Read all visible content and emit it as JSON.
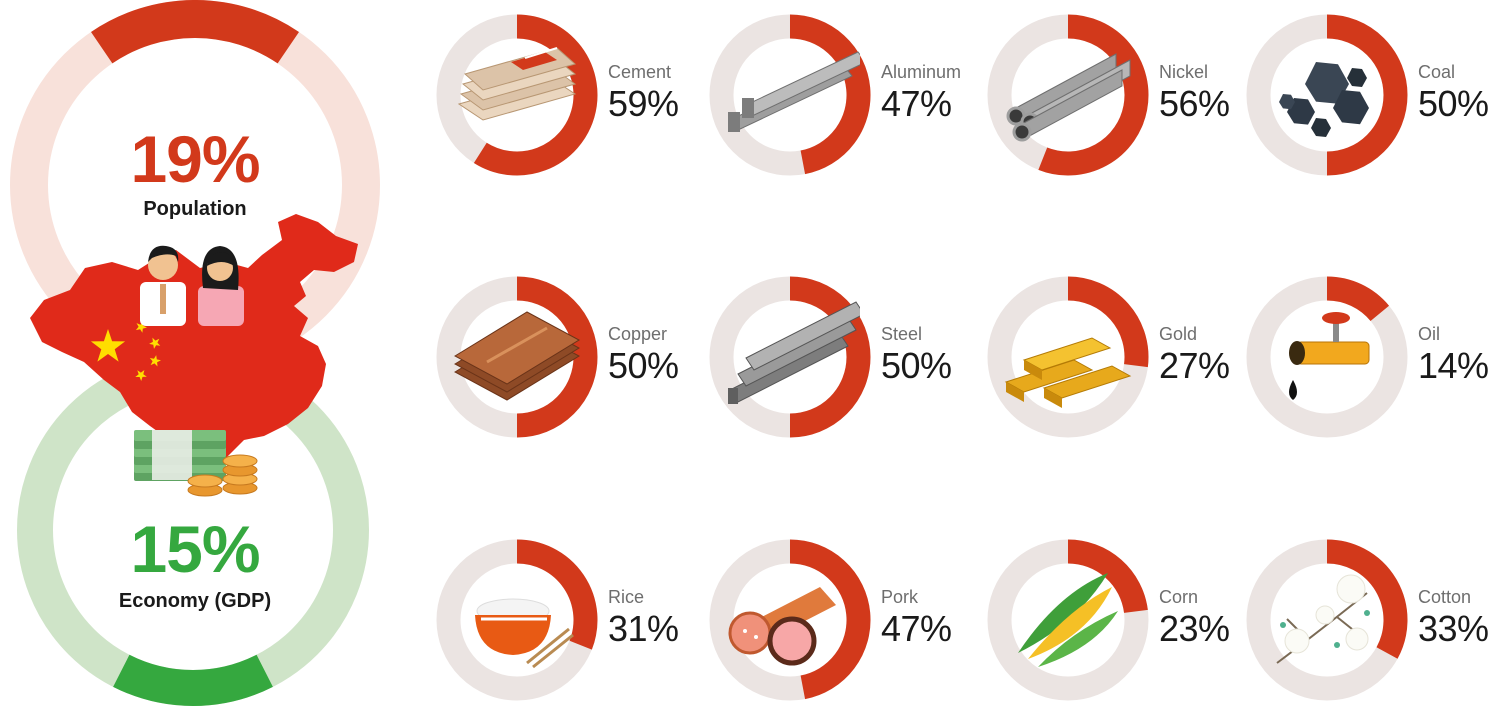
{
  "colors": {
    "accent": "#d2391b",
    "donut_track": "#ebe4e2",
    "population_track": "#f8e1da",
    "gdp_track": "#cfe4c8",
    "gdp_fill": "#35a83f",
    "population_text": "#d2391b",
    "gdp_text": "#35a83f",
    "map_red": "#e02a1a",
    "star_yellow": "#ffde00"
  },
  "headline": {
    "population": {
      "value": "19%",
      "label": "Population",
      "fraction": 0.19
    },
    "gdp": {
      "value": "15%",
      "label": "Economy (GDP)",
      "fraction": 0.15
    }
  },
  "chart_data": {
    "type": "pie",
    "categories": [
      "Cement",
      "Aluminum",
      "Nickel",
      "Coal",
      "Copper",
      "Steel",
      "Gold",
      "Oil",
      "Rice",
      "Pork",
      "Corn",
      "Cotton"
    ],
    "values": [
      59,
      47,
      56,
      50,
      50,
      50,
      27,
      14,
      31,
      47,
      23,
      33
    ],
    "labels": [
      "59%",
      "47%",
      "56%",
      "50%",
      "50%",
      "50%",
      "27%",
      "14%",
      "31%",
      "47%",
      "23%",
      "33%"
    ],
    "icons": [
      "cement-bags-icon",
      "aluminum-bars-icon",
      "nickel-pipes-icon",
      "coal-icon",
      "copper-sheets-icon",
      "steel-beams-icon",
      "gold-bars-icon",
      "oil-valve-icon",
      "rice-bowl-icon",
      "pork-sausage-icon",
      "corn-icon",
      "cotton-icon"
    ]
  }
}
